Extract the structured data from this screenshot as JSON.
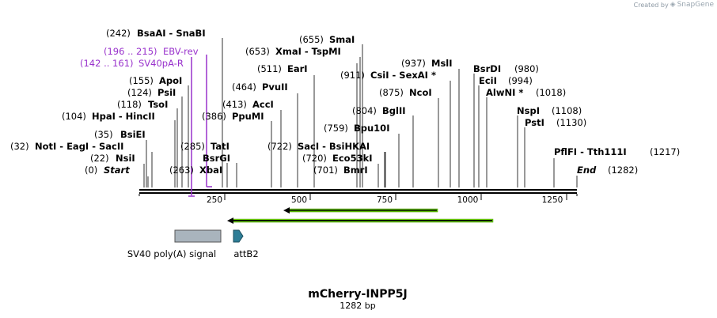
{
  "credit": {
    "prefix": "Created by",
    "brand": "SnapGene",
    "logo_icon": "snapgene-logo-icon"
  },
  "title": "mCherry-INPP5J",
  "subtitle": "1282 bp",
  "sequence_length": 1282,
  "axis_ticks": [
    "250",
    "500",
    "750",
    "1000",
    "1250"
  ],
  "colors": {
    "feature_purple": "#9932cc",
    "arrow_green": "#66cc00",
    "polyA_grey": "#a9b4bd",
    "attB_teal": "#2e7d96"
  },
  "sites": [
    {
      "pos": "(0)",
      "name": "Start",
      "italic": true
    },
    {
      "pos": "(22)",
      "name": "NsiI"
    },
    {
      "pos": "(32)",
      "name": "NotI  - EagI  - SacII"
    },
    {
      "pos": "(35)",
      "name": "BsiEI"
    },
    {
      "pos": "(104)",
      "name": "HpaI  - HincII"
    },
    {
      "pos": "(118)",
      "name": "TsoI"
    },
    {
      "pos": "(124)",
      "name": "PsiI"
    },
    {
      "pos": "(155)",
      "name": "ApoI"
    },
    {
      "pos": "(242)",
      "name": "BsaAI  - SnaBI"
    },
    {
      "pos": "(263)",
      "name": "XbaI"
    },
    {
      "pos": "",
      "name": "BsrGI"
    },
    {
      "pos": "(285)",
      "name": "TatI"
    },
    {
      "pos": "(386)",
      "name": "PpuMI"
    },
    {
      "pos": "(413)",
      "name": "AccI"
    },
    {
      "pos": "(464)",
      "name": "PvuII"
    },
    {
      "pos": "(511)",
      "name": "EarI"
    },
    {
      "pos": "(653)",
      "name": "XmaI  - TspMI"
    },
    {
      "pos": "(655)",
      "name": "SmaI"
    },
    {
      "pos": "(701)",
      "name": "BmrI"
    },
    {
      "pos": "(720)",
      "name": "Eco53kI"
    },
    {
      "pos": "(722)",
      "name": "SacI  - BsiHKAI"
    },
    {
      "pos": "(759)",
      "name": "Bpu10I"
    },
    {
      "pos": "(804)",
      "name": "BglII"
    },
    {
      "pos": "(875)",
      "name": "NcoI"
    },
    {
      "pos": "(911)",
      "name": "CsiI  - SexAI *"
    },
    {
      "pos": "(937)",
      "name": "MslI"
    },
    {
      "pos": "(980)",
      "name": "BsrDI"
    },
    {
      "pos": "(994)",
      "name": "EciI"
    },
    {
      "pos": "(1018)",
      "name": "AlwNI *"
    },
    {
      "pos": "(1108)",
      "name": "NspI"
    },
    {
      "pos": "(1130)",
      "name": "PstI"
    },
    {
      "pos": "(1217)",
      "name": "PflFI  - Tth111I"
    },
    {
      "pos": "(1282)",
      "name": "End",
      "italic": true
    }
  ],
  "primers": [
    {
      "range": "(196 .. 215)",
      "name": "EBV-rev"
    },
    {
      "range": "(142 .. 161)",
      "name": "SV40pA-R"
    }
  ],
  "features": [
    {
      "name": "SV40 poly(A) signal",
      "icon": "polyA-box-icon"
    },
    {
      "name": "attB2",
      "icon": "attB2-arrow-icon"
    }
  ]
}
